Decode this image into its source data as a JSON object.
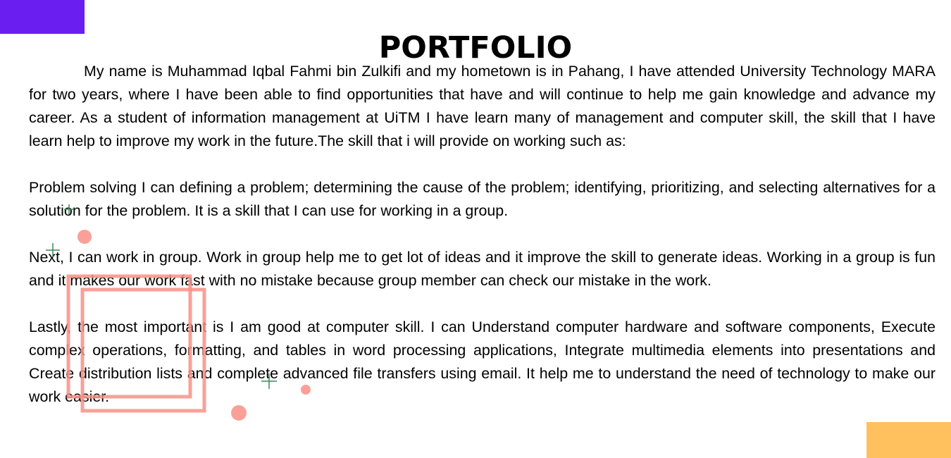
{
  "colors": {
    "accent_purple": "#6a1ff0",
    "accent_yellow": "#ffc15e",
    "decor_coral": "#f98f86",
    "decor_green": "#3a8a5b"
  },
  "page": {
    "title": "PORTFOLIO"
  },
  "paragraphs": [
    "My name is Muhammad Iqbal Fahmi bin Zulkifi and my hometown is in Pahang, I have attended University Technology MARA for two years, where I have been able to find opportunities that have and will continue to help me gain knowledge and advance my career. As a student of information management at UiTM I have learn many of management and computer skill, the skill that I have learn help to improve my work in the future.The skill that i will provide on working such as:",
    "Problem solving I can defining a problem; determining the cause of the problem; identifying, prioritizing, and selecting alternatives for a solution for the problem. It is a skill that I can use for working in a group.",
    "Next, I can work in group. Work in group help me to get lot of ideas and it improve the skill to generate ideas. Working in a group is fun and it makes our work fast with no mistake because group member can check our mistake in the work.",
    "Lastly, the most important is I am good at computer skill. I can Understand computer hardware and software components, Execute complex operations, formatting, and tables in word processing applications, Integrate multimedia elements into presentations and Create distribution lists and complete advanced file transfers using email. It help me to understand the need of technology to make our work easier."
  ]
}
